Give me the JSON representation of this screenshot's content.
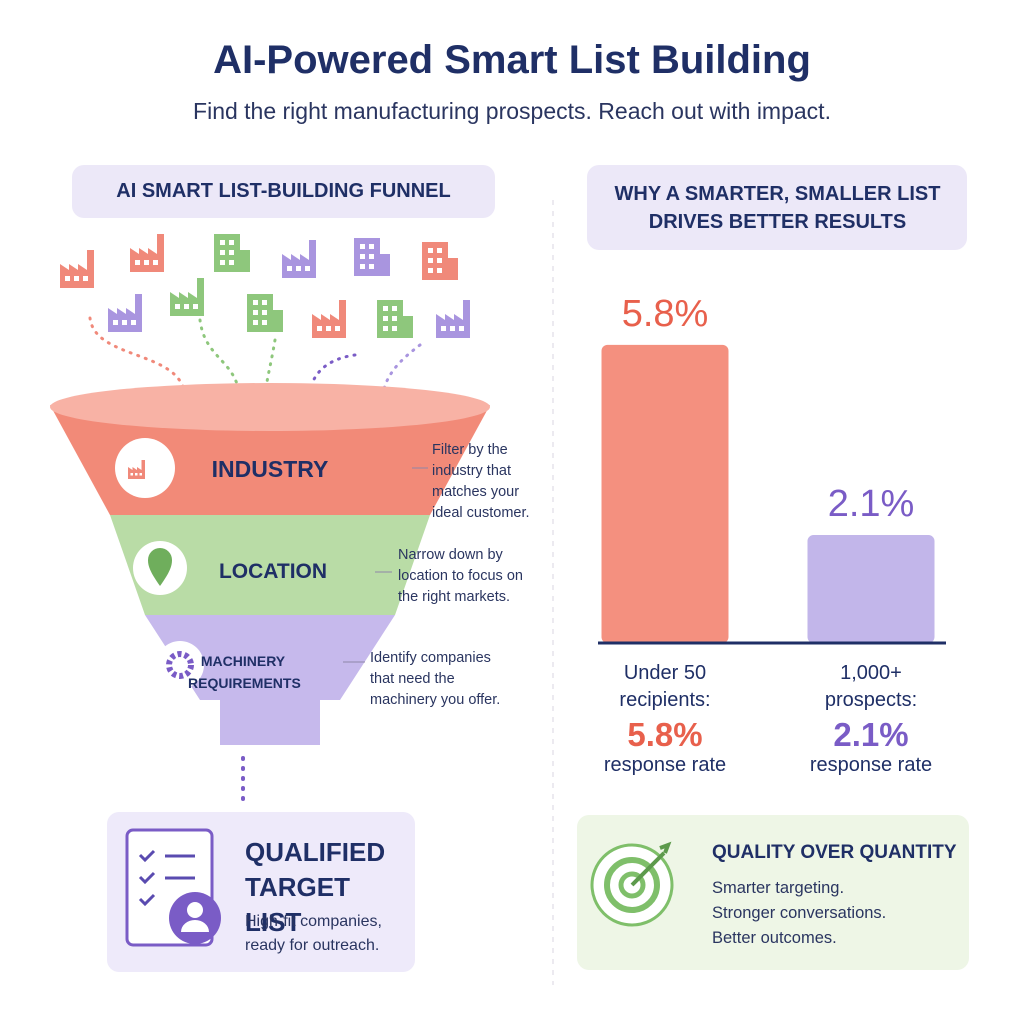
{
  "header": {
    "title": "AI-Powered Smart List Building",
    "subtitle": "Find the right manufacturing prospects. Reach out with impact."
  },
  "funnel": {
    "title": "AI SMART LIST-BUILDING FUNNEL",
    "stages": [
      {
        "label": "INDUSTRY",
        "note": "Filter by the industry that matches your ideal customer."
      },
      {
        "label": "LOCATION",
        "note": "Narrow down by location to focus on the right markets."
      },
      {
        "label": "MACHINERY REQUIREMENTS",
        "note": "Identify companies that need the machinery you offer."
      }
    ]
  },
  "result": {
    "title": "QUALIFIED TARGET LIST",
    "text": "High-fit companies, ready for outreach."
  },
  "chart_data": {
    "type": "bar",
    "title": "WHY A SMARTER, SMALLER LIST DRIVES BETTER RESULTS",
    "categories": [
      "Under 50 recipients:",
      "1,000+ prospects:"
    ],
    "values": [
      5.8,
      2.1
    ],
    "value_labels": [
      "5.8%",
      "2.1%"
    ],
    "colors": [
      "#f4907f",
      "#c2b6ea"
    ],
    "label_colors": [
      "#e8604c",
      "#7a5cc6"
    ],
    "caption": "response rate"
  },
  "conclusion": {
    "title": "QUALITY OVER QUANTITY",
    "lines": [
      "Smarter targeting.",
      "Stronger conversations.",
      "Better outcomes."
    ]
  }
}
